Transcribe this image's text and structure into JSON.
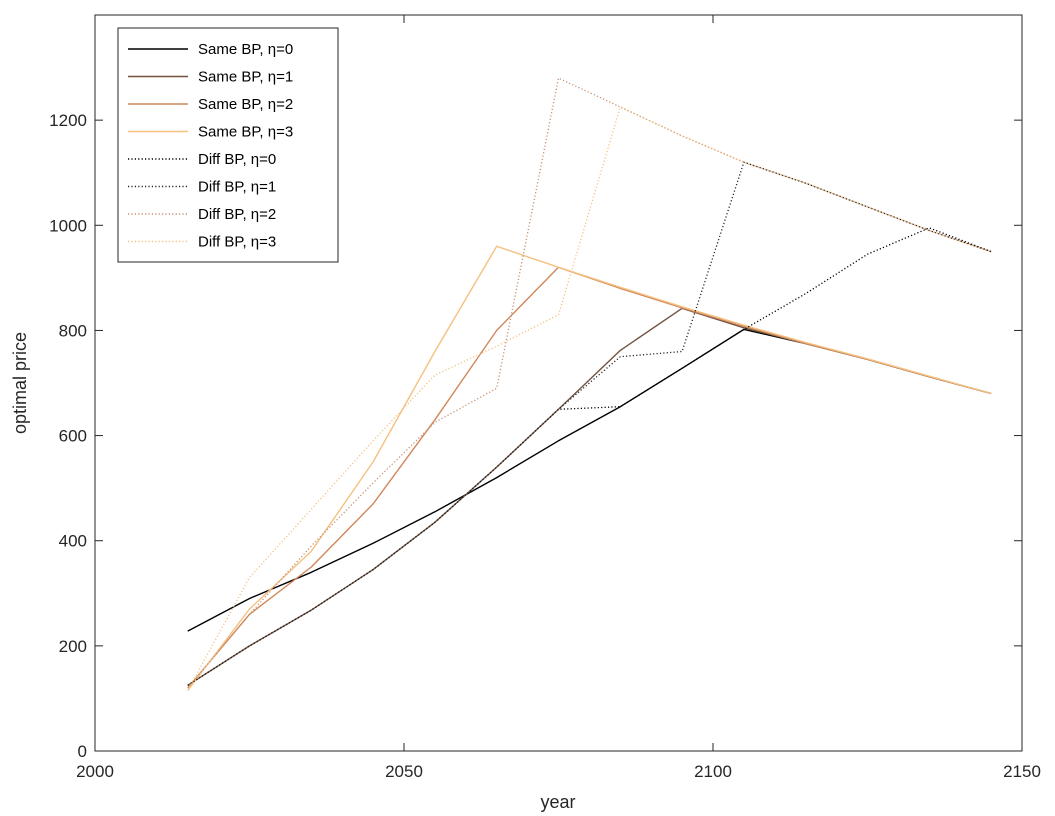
{
  "chart_data": {
    "type": "line",
    "title": "",
    "xlabel": "year",
    "ylabel": "optimal price",
    "xlim": [
      2000,
      2150
    ],
    "ylim": [
      0,
      1400
    ],
    "xticks": [
      2000,
      2050,
      2100,
      2150
    ],
    "yticks": [
      0,
      200,
      400,
      600,
      800,
      1000,
      1200
    ],
    "grid": false,
    "legend_position": "top-left",
    "series": [
      {
        "name": "Same BP, η=0",
        "color": "#000000",
        "style": "solid",
        "points": [
          [
            2015,
            228
          ],
          [
            2025,
            290
          ],
          [
            2035,
            340
          ],
          [
            2045,
            395
          ],
          [
            2055,
            455
          ],
          [
            2065,
            520
          ],
          [
            2075,
            590
          ],
          [
            2085,
            655
          ],
          [
            2095,
            728
          ],
          [
            2105,
            802
          ],
          [
            2115,
            775
          ],
          [
            2125,
            745
          ],
          [
            2135,
            712
          ],
          [
            2145,
            680
          ]
        ]
      },
      {
        "name": "Same BP, η=1",
        "color": "#735340",
        "style": "solid",
        "points": [
          [
            2015,
            125
          ],
          [
            2025,
            200
          ],
          [
            2035,
            268
          ],
          [
            2045,
            345
          ],
          [
            2055,
            435
          ],
          [
            2065,
            540
          ],
          [
            2075,
            650
          ],
          [
            2085,
            762
          ],
          [
            2095,
            842
          ],
          [
            2105,
            805
          ],
          [
            2115,
            775
          ],
          [
            2125,
            745
          ],
          [
            2135,
            712
          ],
          [
            2145,
            680
          ]
        ]
      },
      {
        "name": "Same BP, η=2",
        "color": "#d0875a",
        "style": "solid",
        "points": [
          [
            2015,
            120
          ],
          [
            2025,
            260
          ],
          [
            2035,
            350
          ],
          [
            2045,
            470
          ],
          [
            2055,
            630
          ],
          [
            2065,
            800
          ],
          [
            2075,
            920
          ],
          [
            2085,
            880
          ],
          [
            2095,
            843
          ],
          [
            2105,
            808
          ],
          [
            2115,
            775
          ],
          [
            2125,
            745
          ],
          [
            2135,
            712
          ],
          [
            2145,
            680
          ]
        ]
      },
      {
        "name": "Same BP, η=3",
        "color": "#f5c080",
        "style": "solid",
        "points": [
          [
            2015,
            115
          ],
          [
            2025,
            270
          ],
          [
            2035,
            380
          ],
          [
            2045,
            550
          ],
          [
            2055,
            760
          ],
          [
            2065,
            960
          ],
          [
            2075,
            920
          ],
          [
            2085,
            882
          ],
          [
            2095,
            845
          ],
          [
            2105,
            810
          ],
          [
            2115,
            777
          ],
          [
            2125,
            746
          ],
          [
            2135,
            713
          ],
          [
            2145,
            680
          ]
        ]
      },
      {
        "name": "Diff BP, η=0",
        "color": "#000000",
        "style": "dotted",
        "points": [
          [
            2015,
            125
          ],
          [
            2025,
            200
          ],
          [
            2035,
            268
          ],
          [
            2045,
            345
          ],
          [
            2055,
            435
          ],
          [
            2065,
            540
          ],
          [
            2075,
            650
          ],
          [
            2085,
            655
          ],
          [
            2095,
            728
          ],
          [
            2105,
            802
          ],
          [
            2115,
            870
          ],
          [
            2125,
            945
          ],
          [
            2135,
            995
          ],
          [
            2145,
            950
          ]
        ]
      },
      {
        "name": "Diff BP, η=1",
        "color": "#262626",
        "style": "dotted",
        "points": [
          [
            2015,
            125
          ],
          [
            2025,
            200
          ],
          [
            2035,
            268
          ],
          [
            2045,
            345
          ],
          [
            2055,
            435
          ],
          [
            2065,
            540
          ],
          [
            2075,
            650
          ],
          [
            2085,
            750
          ],
          [
            2095,
            760
          ],
          [
            2105,
            1120
          ],
          [
            2115,
            1080
          ],
          [
            2125,
            1035
          ],
          [
            2135,
            990
          ],
          [
            2145,
            950
          ]
        ]
      },
      {
        "name": "Diff BP, η=2",
        "color": "#c49070",
        "style": "dotted",
        "points": [
          [
            2015,
            120
          ],
          [
            2025,
            260
          ],
          [
            2035,
            390
          ],
          [
            2045,
            510
          ],
          [
            2055,
            625
          ],
          [
            2065,
            690
          ],
          [
            2075,
            1280
          ],
          [
            2085,
            1225
          ],
          [
            2095,
            1170
          ],
          [
            2105,
            1120
          ],
          [
            2115,
            1080
          ],
          [
            2125,
            1035
          ],
          [
            2135,
            990
          ],
          [
            2145,
            950
          ]
        ]
      },
      {
        "name": "Diff BP, η=3",
        "color": "#f5c080",
        "style": "dotted",
        "points": [
          [
            2015,
            115
          ],
          [
            2025,
            330
          ],
          [
            2035,
            460
          ],
          [
            2045,
            590
          ],
          [
            2055,
            715
          ],
          [
            2065,
            770
          ],
          [
            2075,
            830
          ],
          [
            2085,
            1225
          ],
          [
            2095,
            1170
          ],
          [
            2105,
            1120
          ],
          [
            2115,
            1080
          ],
          [
            2125,
            1035
          ],
          [
            2135,
            990
          ],
          [
            2145,
            950
          ]
        ]
      }
    ]
  }
}
